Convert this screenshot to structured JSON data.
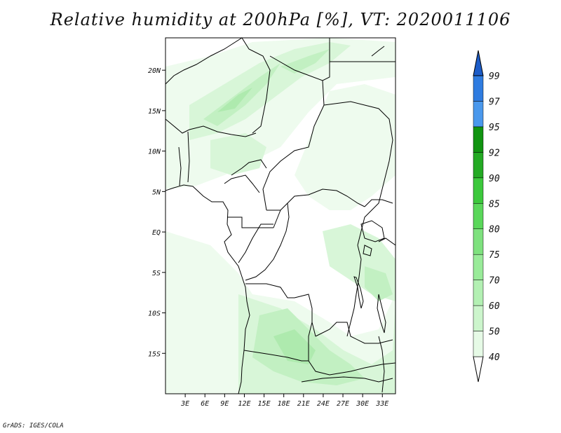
{
  "title": "Relative humidity at 200hPa [%], VT: 2020011106",
  "credit": "GrADS: IGES/COLA",
  "map": {
    "lon_range": [
      0,
      35
    ],
    "lat_range": [
      -20,
      24
    ],
    "lat_ticks": [
      {
        "value": 20,
        "label": "20N"
      },
      {
        "value": 15,
        "label": "15N"
      },
      {
        "value": 10,
        "label": "10N"
      },
      {
        "value": 5,
        "label": "5N"
      },
      {
        "value": 0,
        "label": "EQ"
      },
      {
        "value": -5,
        "label": "5S"
      },
      {
        "value": -10,
        "label": "10S"
      },
      {
        "value": -15,
        "label": "15S"
      }
    ],
    "lon_ticks": [
      {
        "value": 3,
        "label": "3E"
      },
      {
        "value": 6,
        "label": "6E"
      },
      {
        "value": 9,
        "label": "9E"
      },
      {
        "value": 12,
        "label": "12E"
      },
      {
        "value": 15,
        "label": "15E"
      },
      {
        "value": 18,
        "label": "18E"
      },
      {
        "value": 21,
        "label": "21E"
      },
      {
        "value": 24,
        "label": "24E"
      },
      {
        "value": 27,
        "label": "27E"
      },
      {
        "value": 30,
        "label": "30E"
      },
      {
        "value": 33,
        "label": "33E"
      }
    ]
  },
  "colorbar": {
    "levels": [
      "40",
      "50",
      "60",
      "70",
      "75",
      "80",
      "85",
      "90",
      "92",
      "95",
      "97",
      "99"
    ],
    "colors": [
      "#ffffff",
      "#e6fae6",
      "#ccf5cc",
      "#b3f0b3",
      "#99eb99",
      "#7ee17e",
      "#5ad75a",
      "#3cc83c",
      "#24aa24",
      "#119411",
      "#4a98ec",
      "#2f7ce0",
      "#1c5cc8"
    ]
  }
}
